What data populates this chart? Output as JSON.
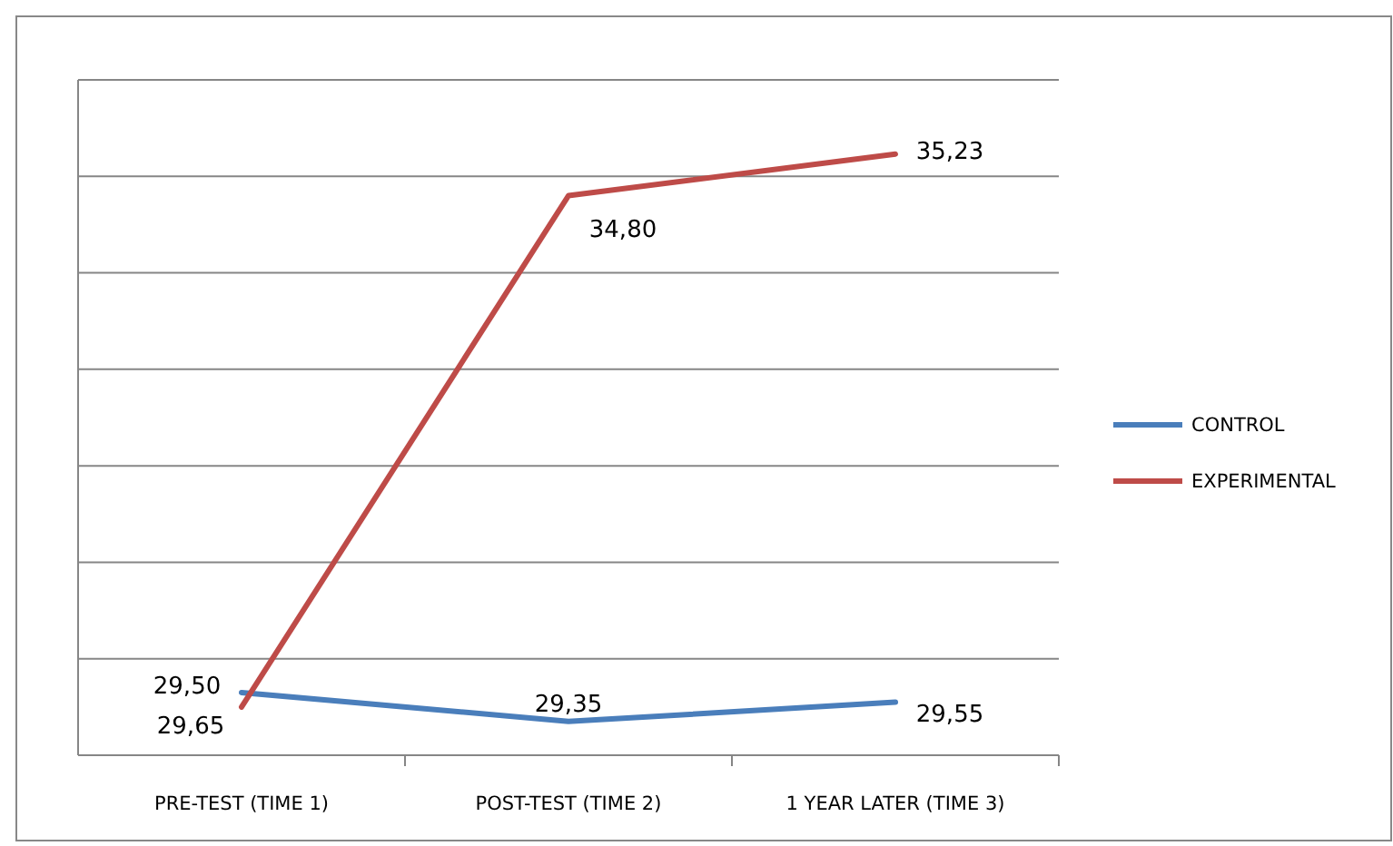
{
  "chart_data": {
    "type": "line",
    "categories": [
      "PRE-TEST (TIME 1)",
      "POST-TEST (TIME 2)",
      "1 YEAR LATER (TIME 3)"
    ],
    "series": [
      {
        "name": "CONTROL",
        "color": "#4a7ebb",
        "values": [
          29.65,
          29.35,
          29.55
        ],
        "value_labels": [
          "29,65",
          "29,35",
          "29,55"
        ]
      },
      {
        "name": "EXPERIMENTAL",
        "color": "#be4b48",
        "values": [
          29.5,
          34.8,
          35.23
        ],
        "value_labels": [
          "29,50",
          "34,80",
          "35,23"
        ]
      }
    ],
    "ylim": [
      29,
      36
    ],
    "yticks": [
      {
        "value": 29,
        "label": null
      },
      {
        "value": 30,
        "label": null
      },
      {
        "value": 31,
        "label": null
      },
      {
        "value": 32,
        "label": null
      },
      {
        "value": 33,
        "label": null
      },
      {
        "value": 34,
        "label": null
      },
      {
        "value": 35,
        "label": null
      },
      {
        "value": 36,
        "label": null
      }
    ],
    "tick_labels": "x",
    "grid": "y",
    "legend": "right",
    "marker": "none",
    "line_style": "solid"
  }
}
